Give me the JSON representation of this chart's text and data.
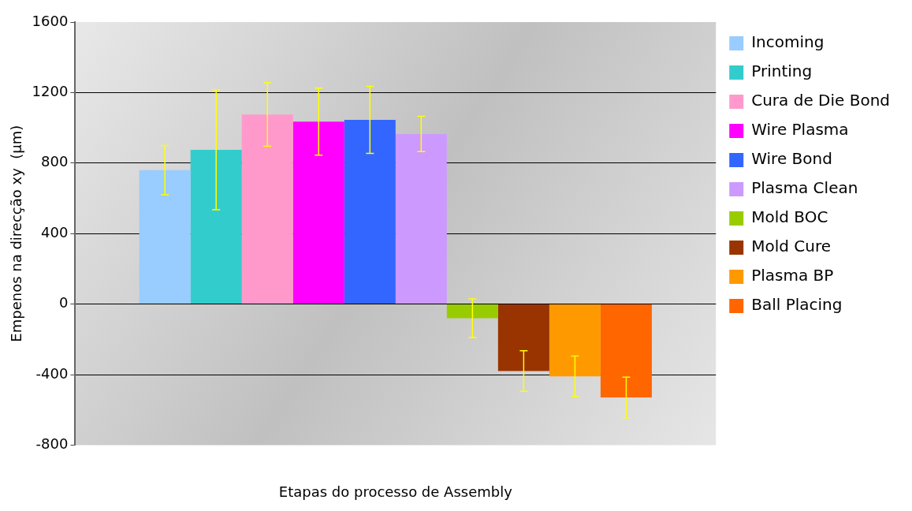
{
  "chart_data": {
    "type": "bar",
    "xlabel": "Etapas do processo de Assembly",
    "ylabel": "Empenos na direcção xy  (µm)",
    "categories": [
      null
    ],
    "series": [
      {
        "name": "Incoming",
        "color": "#99ccff",
        "values": [
          760
        ],
        "errors": [
          140
        ]
      },
      {
        "name": "Printing",
        "color": "#33cccc",
        "values": [
          875
        ],
        "errors": [
          340
        ]
      },
      {
        "name": "Cura de Die Bond",
        "color": "#ff99cc",
        "values": [
          1075
        ],
        "errors": [
          180
        ]
      },
      {
        "name": "Wire Plasma",
        "color": "#ff00ff",
        "values": [
          1035
        ],
        "errors": [
          190
        ]
      },
      {
        "name": "Wire Bond",
        "color": "#3366ff",
        "values": [
          1045
        ],
        "errors": [
          190
        ]
      },
      {
        "name": "Plasma Clean",
        "color": "#cc99ff",
        "values": [
          965
        ],
        "errors": [
          100
        ]
      },
      {
        "name": "Mold BOC",
        "color": "#99cc00",
        "values": [
          -80
        ],
        "errors": [
          110
        ]
      },
      {
        "name": "Mold Cure",
        "color": "#993300",
        "values": [
          -380
        ],
        "errors": [
          115
        ]
      },
      {
        "name": "Plasma BP",
        "color": "#ff9900",
        "values": [
          -410
        ],
        "errors": [
          115
        ]
      },
      {
        "name": "Ball Placing",
        "color": "#ff6600",
        "values": [
          -530
        ],
        "errors": [
          115
        ]
      }
    ],
    "ylim": [
      -800,
      1600
    ],
    "yticks": [
      -800,
      -400,
      0,
      400,
      800,
      1200,
      1600
    ],
    "grid": "y",
    "legend": "right"
  }
}
